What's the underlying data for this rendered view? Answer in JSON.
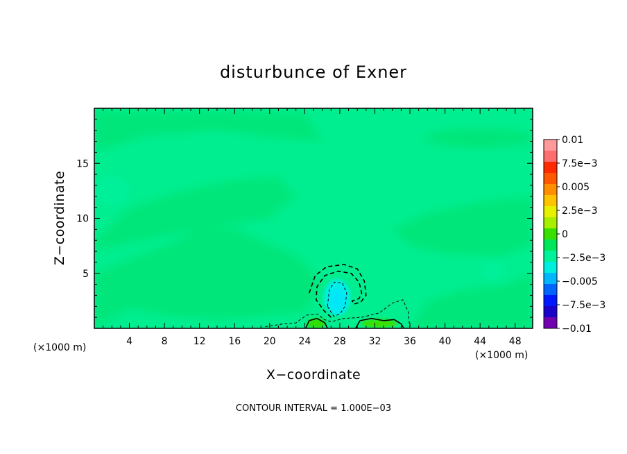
{
  "chart_data": {
    "type": "heatmap",
    "title": "disturbunce of Exner",
    "xlabel": "X−coordinate",
    "ylabel": "Z−coordinate",
    "x_unit": "(×1000 m)",
    "x_unit_right": "(×1000 m)",
    "xlim": [
      0,
      50
    ],
    "ylim": [
      0,
      20
    ],
    "x_ticks": [
      4,
      8,
      12,
      16,
      20,
      24,
      28,
      32,
      36,
      40,
      44,
      48
    ],
    "y_ticks": [
      5,
      10,
      15
    ],
    "footer": "CONTOUR INTERVAL = 1.000E−03",
    "colorbar": {
      "levels": [
        {
          "label": "0.01",
          "color": "#ff9a9a"
        },
        {
          "label": "",
          "color": "#ff6e6e"
        },
        {
          "label": "7.5e−3",
          "color": "#ff2a00"
        },
        {
          "label": "",
          "color": "#ff5800"
        },
        {
          "label": "0.005",
          "color": "#ff8e00"
        },
        {
          "label": "",
          "color": "#ffc400"
        },
        {
          "label": "2.5e−3",
          "color": "#e6f000"
        },
        {
          "label": "",
          "color": "#a8ee00"
        },
        {
          "label": "0",
          "color": "#38e000"
        },
        {
          "label": "",
          "color": "#00e65a"
        },
        {
          "label": "−2.5e−3",
          "color": "#00f29a"
        },
        {
          "label": "",
          "color": "#00eee0"
        },
        {
          "label": "−0.005",
          "color": "#00b6ff"
        },
        {
          "label": "",
          "color": "#0064ff"
        },
        {
          "label": "−7.5e−3",
          "color": "#0018ff"
        },
        {
          "label": "",
          "color": "#1a00c8"
        },
        {
          "label": "−0.01",
          "color": "#7000b0"
        }
      ]
    },
    "field_colors": {
      "background": "#00ee90",
      "band_low": "#00e67a",
      "band_high": "#00f09a",
      "cell_inner": "#00eee8",
      "cell_core": "#00e8f8",
      "positive_lobe": "#30de00",
      "positive_lobe_inner": "#3ae000"
    },
    "contours": [
      {
        "name": "outer-negative",
        "style": "dashed",
        "points": [
          [
            24.5,
            3.2
          ],
          [
            25.2,
            4.8
          ],
          [
            26.5,
            5.6
          ],
          [
            28.5,
            5.8
          ],
          [
            30.0,
            5.4
          ],
          [
            30.8,
            4.3
          ],
          [
            31.0,
            3.0
          ],
          [
            30.4,
            2.4
          ],
          [
            29.6,
            2.2
          ],
          [
            29.4,
            2.5
          ],
          [
            30.2,
            2.7
          ],
          [
            30.5,
            3.2
          ],
          [
            30.2,
            4.2
          ],
          [
            29.3,
            5.0
          ],
          [
            27.8,
            5.2
          ],
          [
            26.3,
            4.8
          ],
          [
            25.4,
            3.8
          ],
          [
            25.3,
            2.6
          ],
          [
            26.2,
            1.6
          ],
          [
            27.0,
            1.0
          ]
        ]
      },
      {
        "name": "inner-negative",
        "style": "dashed-thin",
        "points": [
          [
            26.6,
            2.0
          ],
          [
            26.8,
            3.5
          ],
          [
            27.4,
            4.2
          ],
          [
            28.3,
            4.1
          ],
          [
            28.8,
            3.2
          ],
          [
            28.6,
            2.0
          ],
          [
            28.0,
            1.3
          ],
          [
            27.3,
            1.1
          ],
          [
            26.6,
            2.0
          ]
        ]
      },
      {
        "name": "near-ground-negative",
        "style": "dashed-thin",
        "points": [
          [
            19.5,
            0.15
          ],
          [
            21.5,
            0.4
          ],
          [
            23.0,
            0.5
          ],
          [
            24.2,
            1.2
          ],
          [
            25.5,
            1.3
          ],
          [
            26.2,
            0.8
          ],
          [
            27.0,
            0.6
          ],
          [
            28.5,
            0.9
          ],
          [
            30.5,
            1.0
          ],
          [
            32.5,
            1.4
          ],
          [
            34.0,
            2.3
          ],
          [
            35.2,
            2.6
          ],
          [
            35.8,
            1.5
          ],
          [
            36.0,
            0.0
          ]
        ]
      },
      {
        "name": "zero-left",
        "style": "solid",
        "points": [
          [
            24.1,
            0.0
          ],
          [
            24.5,
            0.7
          ],
          [
            25.4,
            0.9
          ],
          [
            26.3,
            0.5
          ],
          [
            26.6,
            0.0
          ]
        ]
      },
      {
        "name": "zero-right",
        "style": "solid",
        "points": [
          [
            29.8,
            0.0
          ],
          [
            30.3,
            0.7
          ],
          [
            31.6,
            0.9
          ],
          [
            33.0,
            0.7
          ],
          [
            34.2,
            0.8
          ],
          [
            35.0,
            0.4
          ],
          [
            35.3,
            0.0
          ]
        ]
      }
    ],
    "grid": false,
    "legend_position": "right"
  }
}
